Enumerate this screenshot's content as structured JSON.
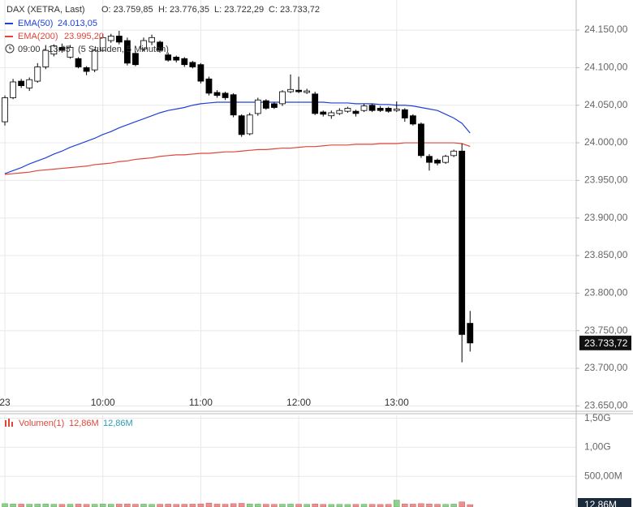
{
  "chart_data": [
    {
      "type": "candlestick",
      "title": "DAX (XETRA, Last)",
      "header_values": [
        "O: 23.759,85",
        "H: 23.776,35",
        "L: 23.722,29",
        "C: 23.733,72"
      ],
      "period": "09:00 - 13:45",
      "period_note": "(5 Stunden, 5 Minuten)",
      "x": [
        "09:00",
        "09:05",
        "09:10",
        "09:15",
        "09:20",
        "09:25",
        "09:30",
        "09:35",
        "09:40",
        "09:45",
        "09:50",
        "09:55",
        "10:00",
        "10:05",
        "10:10",
        "10:15",
        "10:20",
        "10:25",
        "10:30",
        "10:35",
        "10:40",
        "10:45",
        "10:50",
        "10:55",
        "11:00",
        "11:05",
        "11:10",
        "11:15",
        "11:20",
        "11:25",
        "11:30",
        "11:35",
        "11:40",
        "11:45",
        "11:50",
        "11:55",
        "12:00",
        "12:05",
        "12:10",
        "12:15",
        "12:20",
        "12:25",
        "12:30",
        "12:35",
        "12:40",
        "12:45",
        "12:50",
        "12:55",
        "13:00",
        "13:05",
        "13:10",
        "13:15",
        "13:20",
        "13:25",
        "13:30",
        "13:35",
        "13:40",
        "13:45"
      ],
      "open": [
        24028,
        24060,
        24082,
        24073,
        24082,
        24101,
        24118,
        24127,
        24114,
        24112,
        24100,
        24097,
        24123,
        24136,
        24142,
        24136,
        24119,
        24125,
        24134,
        24134,
        24117,
        24114,
        24112,
        24107,
        24104,
        24085,
        24067,
        24066,
        24064,
        24036,
        24012,
        24039,
        24056,
        24052,
        24052,
        24068,
        24070,
        24067,
        24065,
        24041,
        24036,
        24039,
        24042,
        24042,
        24043,
        24050,
        24046,
        24046,
        24043,
        24044,
        24036,
        24025,
        23982,
        23977,
        23974,
        23983,
        23989,
        23759.85
      ],
      "high": [
        24063,
        24085,
        24085,
        24087,
        24106,
        24130,
        24131,
        24132,
        24130,
        24114,
        24102,
        24125,
        24145,
        24145,
        24149,
        24140,
        24122,
        24140,
        24144,
        24136,
        24120,
        24116,
        24114,
        24109,
        24106,
        24088,
        24070,
        24068,
        24066,
        24038,
        24040,
        24060,
        24058,
        24054,
        24070,
        24091,
        24088,
        24072,
        24068,
        24043,
        24043,
        24046,
        24048,
        24044,
        24052,
        24052,
        24049,
        24048,
        24055,
        24046,
        24038,
        24027,
        23985,
        23979,
        23984,
        23991,
        23999,
        23776.35
      ],
      "low": [
        24023,
        24058,
        24073,
        24069,
        24080,
        24098,
        24115,
        24120,
        24112,
        24099,
        24090,
        24094,
        24121,
        24133,
        24131,
        24103,
        24102,
        24122,
        24130,
        24120,
        24108,
        24107,
        24101,
        24099,
        24079,
        24063,
        24060,
        24057,
        24034,
        24008,
        24010,
        24036,
        24044,
        24045,
        24049,
        24066,
        24066,
        24065,
        24037,
        24035,
        24032,
        24037,
        24040,
        24035,
        24041,
        24041,
        24041,
        24040,
        24041,
        24028,
        24023,
        23980,
        23963,
        23970,
        23972,
        23981,
        23708,
        23722.29
      ],
      "close": [
        24060,
        24081,
        24076,
        24084,
        24101,
        24123,
        24129,
        24123,
        24127,
        24101,
        24095,
        24123,
        24140,
        24142,
        24134,
        24106,
        24104,
        24136,
        24140,
        24123,
        24110,
        24110,
        24104,
        24101,
        24082,
        24066,
        24063,
        24060,
        24037,
        24011,
        24037,
        24057,
        24046,
        24047,
        24068,
        24071,
        24068,
        24069,
        24039,
        24038,
        24040,
        24043,
        24046,
        24039,
        24049,
        24043,
        24043,
        24042,
        24045,
        24033,
        24025,
        23983,
        23974,
        23973,
        23982,
        23989,
        23745,
        23733.72
      ],
      "close_label": "23.733,72",
      "up_color": "#ffffff",
      "down_color": "#000000",
      "series": [
        {
          "name": "EMA(50)",
          "color": "#2140d8",
          "value_label": "24.013,05",
          "values": [
            23959,
            23963,
            23967,
            23972,
            23976,
            23980,
            23985,
            23989,
            23994,
            23998,
            24002,
            24006,
            24011,
            24015,
            24020,
            24024,
            24028,
            24032,
            24036,
            24040,
            24043,
            24045,
            24047,
            24050,
            24052,
            24053,
            24054,
            24054,
            24054,
            24054,
            24054,
            24054,
            24054,
            24054,
            24054,
            24054,
            24054,
            24054,
            24054,
            24054,
            24053,
            24053,
            24053,
            24052,
            24052,
            24052,
            24051,
            24051,
            24050,
            24050,
            24049,
            24047,
            24045,
            24043,
            24038,
            24033,
            24026,
            24013.05
          ]
        },
        {
          "name": "EMA(200)",
          "color": "#e0453a",
          "value_label": "23.995,20",
          "values": [
            23958,
            23959,
            23960,
            23961,
            23963,
            23964,
            23965,
            23966,
            23967,
            23968,
            23969,
            23971,
            23972,
            23973,
            23975,
            23976,
            23978,
            23979,
            23980,
            23982,
            23983,
            23984,
            23984,
            23985,
            23986,
            23986,
            23987,
            23988,
            23988,
            23989,
            23990,
            23991,
            23991,
            23992,
            23993,
            23993,
            23994,
            23995,
            23995,
            23996,
            23997,
            23997,
            23997,
            23998,
            23998,
            23998,
            23999,
            23999,
            23999,
            24000,
            24000,
            24000,
            24000,
            24000,
            24000,
            24000,
            23999,
            23995.2
          ]
        }
      ],
      "xlim": [
        "08:57",
        "14:50"
      ],
      "xticks": [
        {
          "value": "09:00",
          "label": "23"
        },
        "10:00",
        "11:00",
        "12:00",
        "13:00"
      ],
      "ylim": [
        23645,
        24190
      ],
      "yticks": [
        {
          "value": 23650,
          "label": "23.650,00"
        },
        {
          "value": 23700,
          "label": "23.700,00"
        },
        {
          "value": 23750,
          "label": "23.750,00"
        },
        {
          "value": 23800,
          "label": "23.800,00"
        },
        {
          "value": 23850,
          "label": "23.850,00"
        },
        {
          "value": 23900,
          "label": "23.900,00"
        },
        {
          "value": 23950,
          "label": "23.950,00"
        },
        {
          "value": 24000,
          "label": "24.000,00"
        },
        {
          "value": 24050,
          "label": "24.050,00"
        },
        {
          "value": 24100,
          "label": "24.100,00"
        },
        {
          "value": 24150,
          "label": "24.150,00"
        }
      ],
      "grid": true
    },
    {
      "type": "bar",
      "name": "Volumen(1)",
      "legend_values": [
        "12,86M",
        "12,86M"
      ],
      "last_label": "12,86M",
      "values": [
        30000000,
        25000000,
        22000000,
        20000000,
        22000000,
        25000000,
        20000000,
        18000000,
        20000000,
        22000000,
        18000000,
        20000000,
        25000000,
        20000000,
        22000000,
        25000000,
        20000000,
        22000000,
        18000000,
        20000000,
        22000000,
        18000000,
        20000000,
        22000000,
        25000000,
        40000000,
        22000000,
        20000000,
        30000000,
        35000000,
        25000000,
        22000000,
        20000000,
        18000000,
        20000000,
        22000000,
        20000000,
        18000000,
        25000000,
        18000000,
        16000000,
        18000000,
        16000000,
        18000000,
        20000000,
        18000000,
        16000000,
        18000000,
        90000000,
        25000000,
        22000000,
        30000000,
        25000000,
        20000000,
        18000000,
        22000000,
        60000000,
        12860000
      ],
      "up_color": "#8fd08f",
      "down_color": "#ec8f8f",
      "ylim": [
        0,
        1550000000
      ],
      "yticks": [
        {
          "value": 500000000,
          "label": "500,00M"
        },
        {
          "value": 1000000000,
          "label": "1,00G"
        },
        {
          "value": 1500000000,
          "label": "1,50G"
        }
      ],
      "grid": true
    }
  ]
}
